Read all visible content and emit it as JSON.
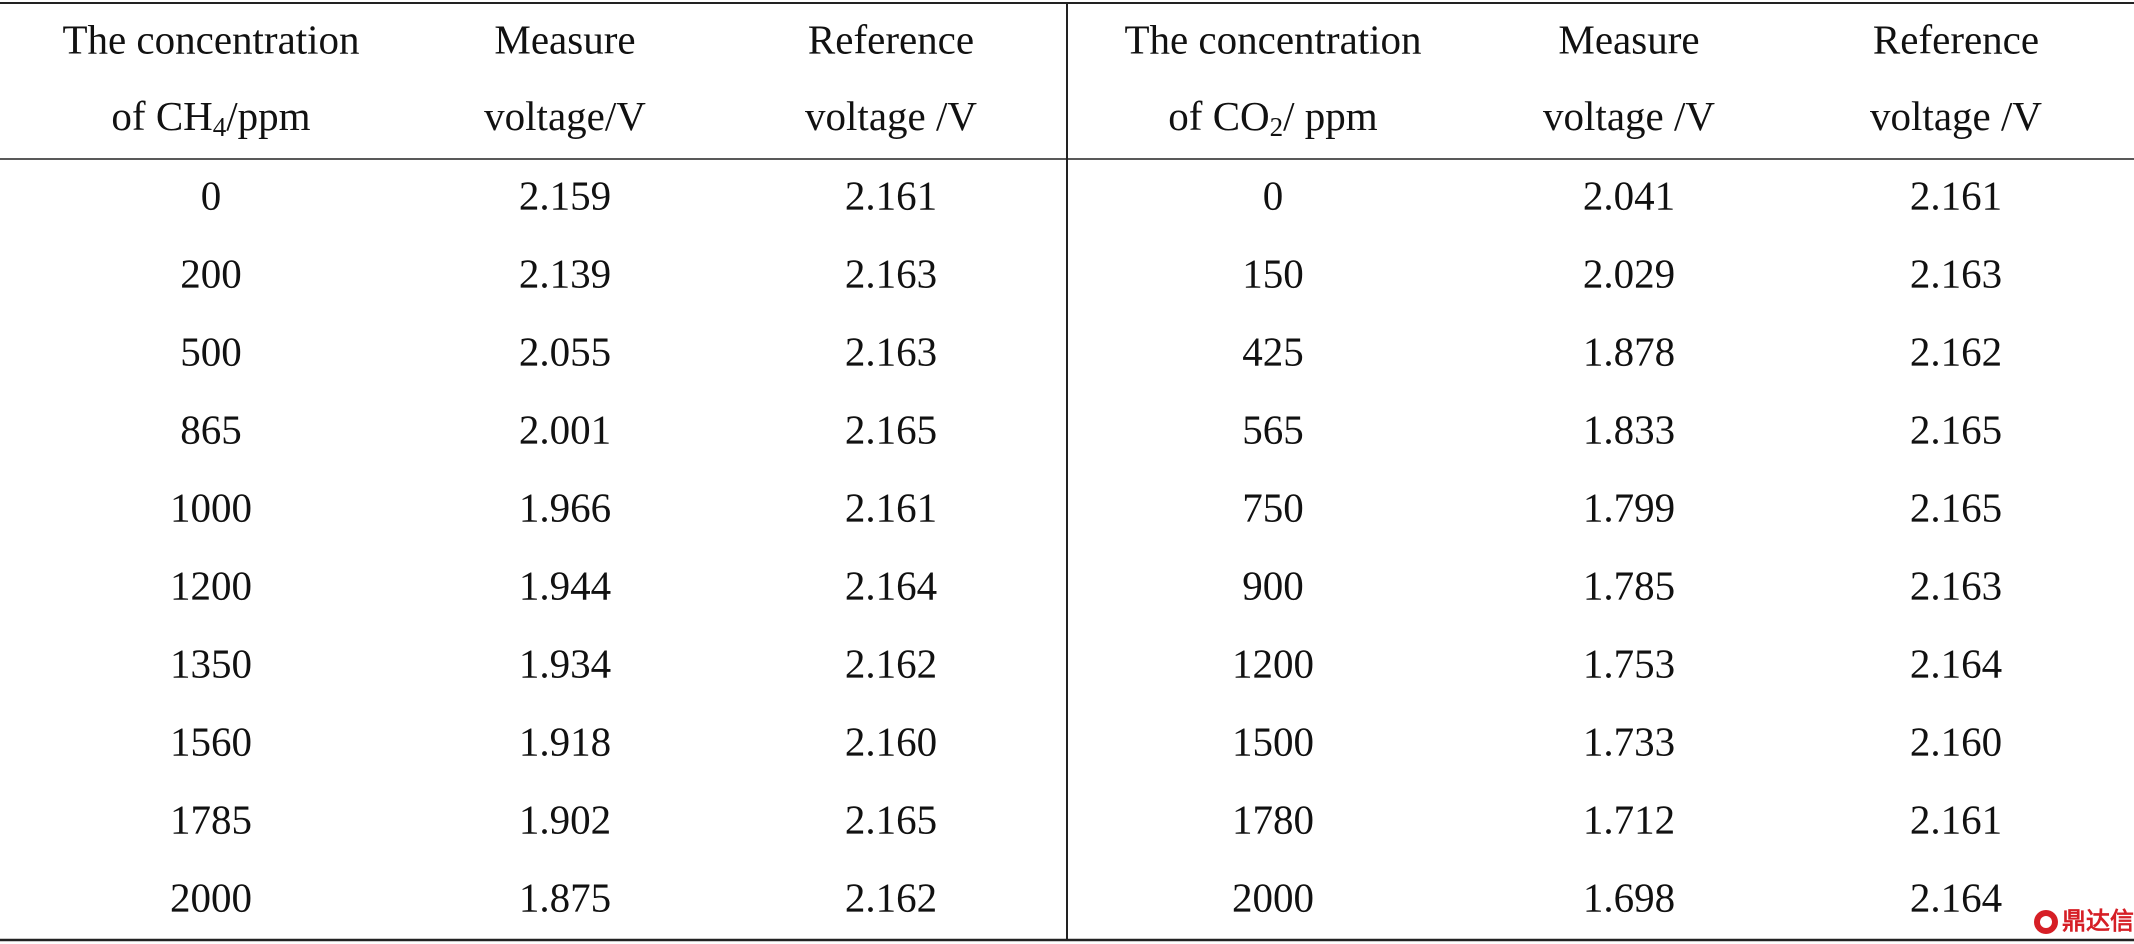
{
  "table": {
    "headers": [
      {
        "line1": "The concentration",
        "line2": "of CH",
        "sub": "4",
        "tail": "/ppm"
      },
      {
        "line1": "Measure",
        "line2": "voltage/V"
      },
      {
        "line1": "Reference",
        "line2": "voltage /V"
      },
      {
        "line1": "The concentration",
        "line2": "of CO",
        "sub": "2",
        "tail": "/ ppm"
      },
      {
        "line1": "Measure",
        "line2": "voltage /V"
      },
      {
        "line1": "Reference",
        "line2": "voltage /V"
      }
    ],
    "rows": [
      [
        "0",
        "2.159",
        "2.161",
        "0",
        "2.041",
        "2.161"
      ],
      [
        "200",
        "2.139",
        "2.163",
        "150",
        "2.029",
        "2.163"
      ],
      [
        "500",
        "2.055",
        "2.163",
        "425",
        "1.878",
        "2.162"
      ],
      [
        "865",
        "2.001",
        "2.165",
        "565",
        "1.833",
        "2.165"
      ],
      [
        "1000",
        "1.966",
        "2.161",
        "750",
        "1.799",
        "2.165"
      ],
      [
        "1200",
        "1.944",
        "2.164",
        "900",
        "1.785",
        "2.163"
      ],
      [
        "1350",
        "1.934",
        "2.162",
        "1200",
        "1.753",
        "2.164"
      ],
      [
        "1560",
        "1.918",
        "2.160",
        "1500",
        "1.733",
        "2.160"
      ],
      [
        "1785",
        "1.902",
        "2.165",
        "1780",
        "1.712",
        "2.161"
      ],
      [
        "2000",
        "1.875",
        "2.162",
        "2000",
        "1.698",
        "2.164"
      ]
    ]
  },
  "watermark": "鼎达信"
}
